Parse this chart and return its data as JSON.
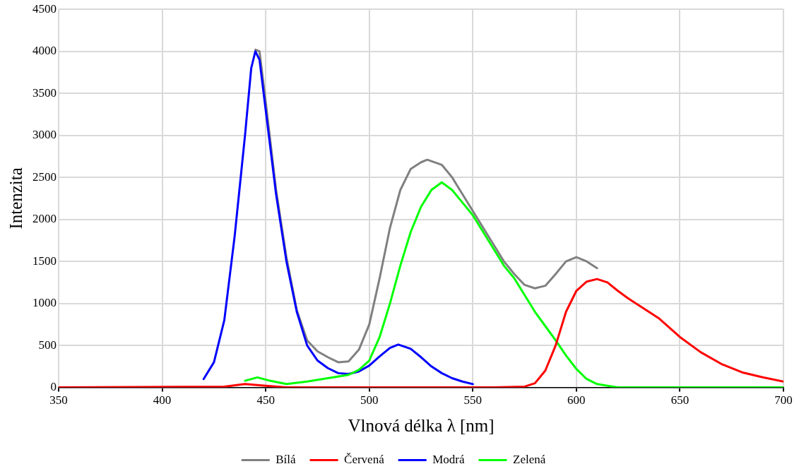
{
  "chart_data": {
    "type": "line",
    "xlabel": "Vlnová délka λ [nm]",
    "ylabel": "Intenzita",
    "xlim": [
      350,
      700
    ],
    "xticks": [
      350,
      400,
      450,
      500,
      550,
      600,
      650,
      700
    ],
    "ylim": [
      0,
      4500
    ],
    "yticks": [
      0,
      500,
      1000,
      1500,
      2000,
      2500,
      3000,
      3500,
      4000,
      4500
    ],
    "grid": true,
    "legend": "bottom",
    "marker": "none",
    "line_style": "solid",
    "series": [
      {
        "name": "Bílá",
        "color": "#808080",
        "x": [
          445,
          447,
          450,
          455,
          460,
          465,
          470,
          475,
          480,
          485,
          490,
          495,
          500,
          505,
          510,
          515,
          520,
          525,
          528,
          535,
          540,
          545,
          550,
          555,
          560,
          565,
          570,
          575,
          580,
          585,
          590,
          595,
          600,
          605,
          610
        ],
        "values": [
          4020,
          4000,
          3400,
          2350,
          1550,
          920,
          560,
          430,
          360,
          300,
          310,
          450,
          750,
          1300,
          1900,
          2350,
          2600,
          2680,
          2710,
          2650,
          2500,
          2300,
          2100,
          1900,
          1700,
          1500,
          1350,
          1220,
          1180,
          1210,
          1350,
          1500,
          1550,
          1500,
          1420
        ]
      },
      {
        "name": "Červená",
        "color": "#ff0000",
        "x": [
          350,
          430,
          440,
          450,
          460,
          560,
          575,
          580,
          585,
          590,
          595,
          600,
          605,
          610,
          615,
          620,
          625,
          630,
          640,
          650,
          660,
          670,
          680,
          690,
          700
        ],
        "values": [
          0,
          10,
          40,
          20,
          0,
          0,
          10,
          50,
          200,
          500,
          900,
          1150,
          1260,
          1290,
          1250,
          1150,
          1060,
          980,
          820,
          600,
          420,
          280,
          180,
          120,
          70
        ]
      },
      {
        "name": "Modrá",
        "color": "#0000ff",
        "x": [
          420,
          425,
          430,
          435,
          440,
          443,
          445,
          447,
          450,
          455,
          460,
          465,
          470,
          475,
          480,
          485,
          490,
          495,
          500,
          505,
          510,
          514,
          520,
          525,
          530,
          535,
          540,
          545,
          550
        ],
        "values": [
          100,
          300,
          800,
          1800,
          3000,
          3800,
          4000,
          3900,
          3300,
          2300,
          1500,
          900,
          500,
          320,
          230,
          170,
          160,
          190,
          260,
          370,
          470,
          510,
          460,
          360,
          250,
          170,
          110,
          70,
          40
        ]
      },
      {
        "name": "Zelená",
        "color": "#00ff00",
        "x": [
          440,
          446,
          452,
          460,
          470,
          480,
          490,
          495,
          500,
          505,
          510,
          515,
          520,
          525,
          530,
          535,
          540,
          545,
          550,
          555,
          560,
          565,
          570,
          575,
          580,
          585,
          590,
          595,
          600,
          605,
          610,
          615,
          620,
          700
        ],
        "values": [
          80,
          120,
          80,
          40,
          70,
          110,
          150,
          210,
          320,
          600,
          1000,
          1450,
          1850,
          2150,
          2350,
          2440,
          2350,
          2200,
          2050,
          1850,
          1650,
          1450,
          1300,
          1100,
          900,
          730,
          560,
          380,
          220,
          100,
          40,
          20,
          0,
          0
        ]
      }
    ]
  }
}
